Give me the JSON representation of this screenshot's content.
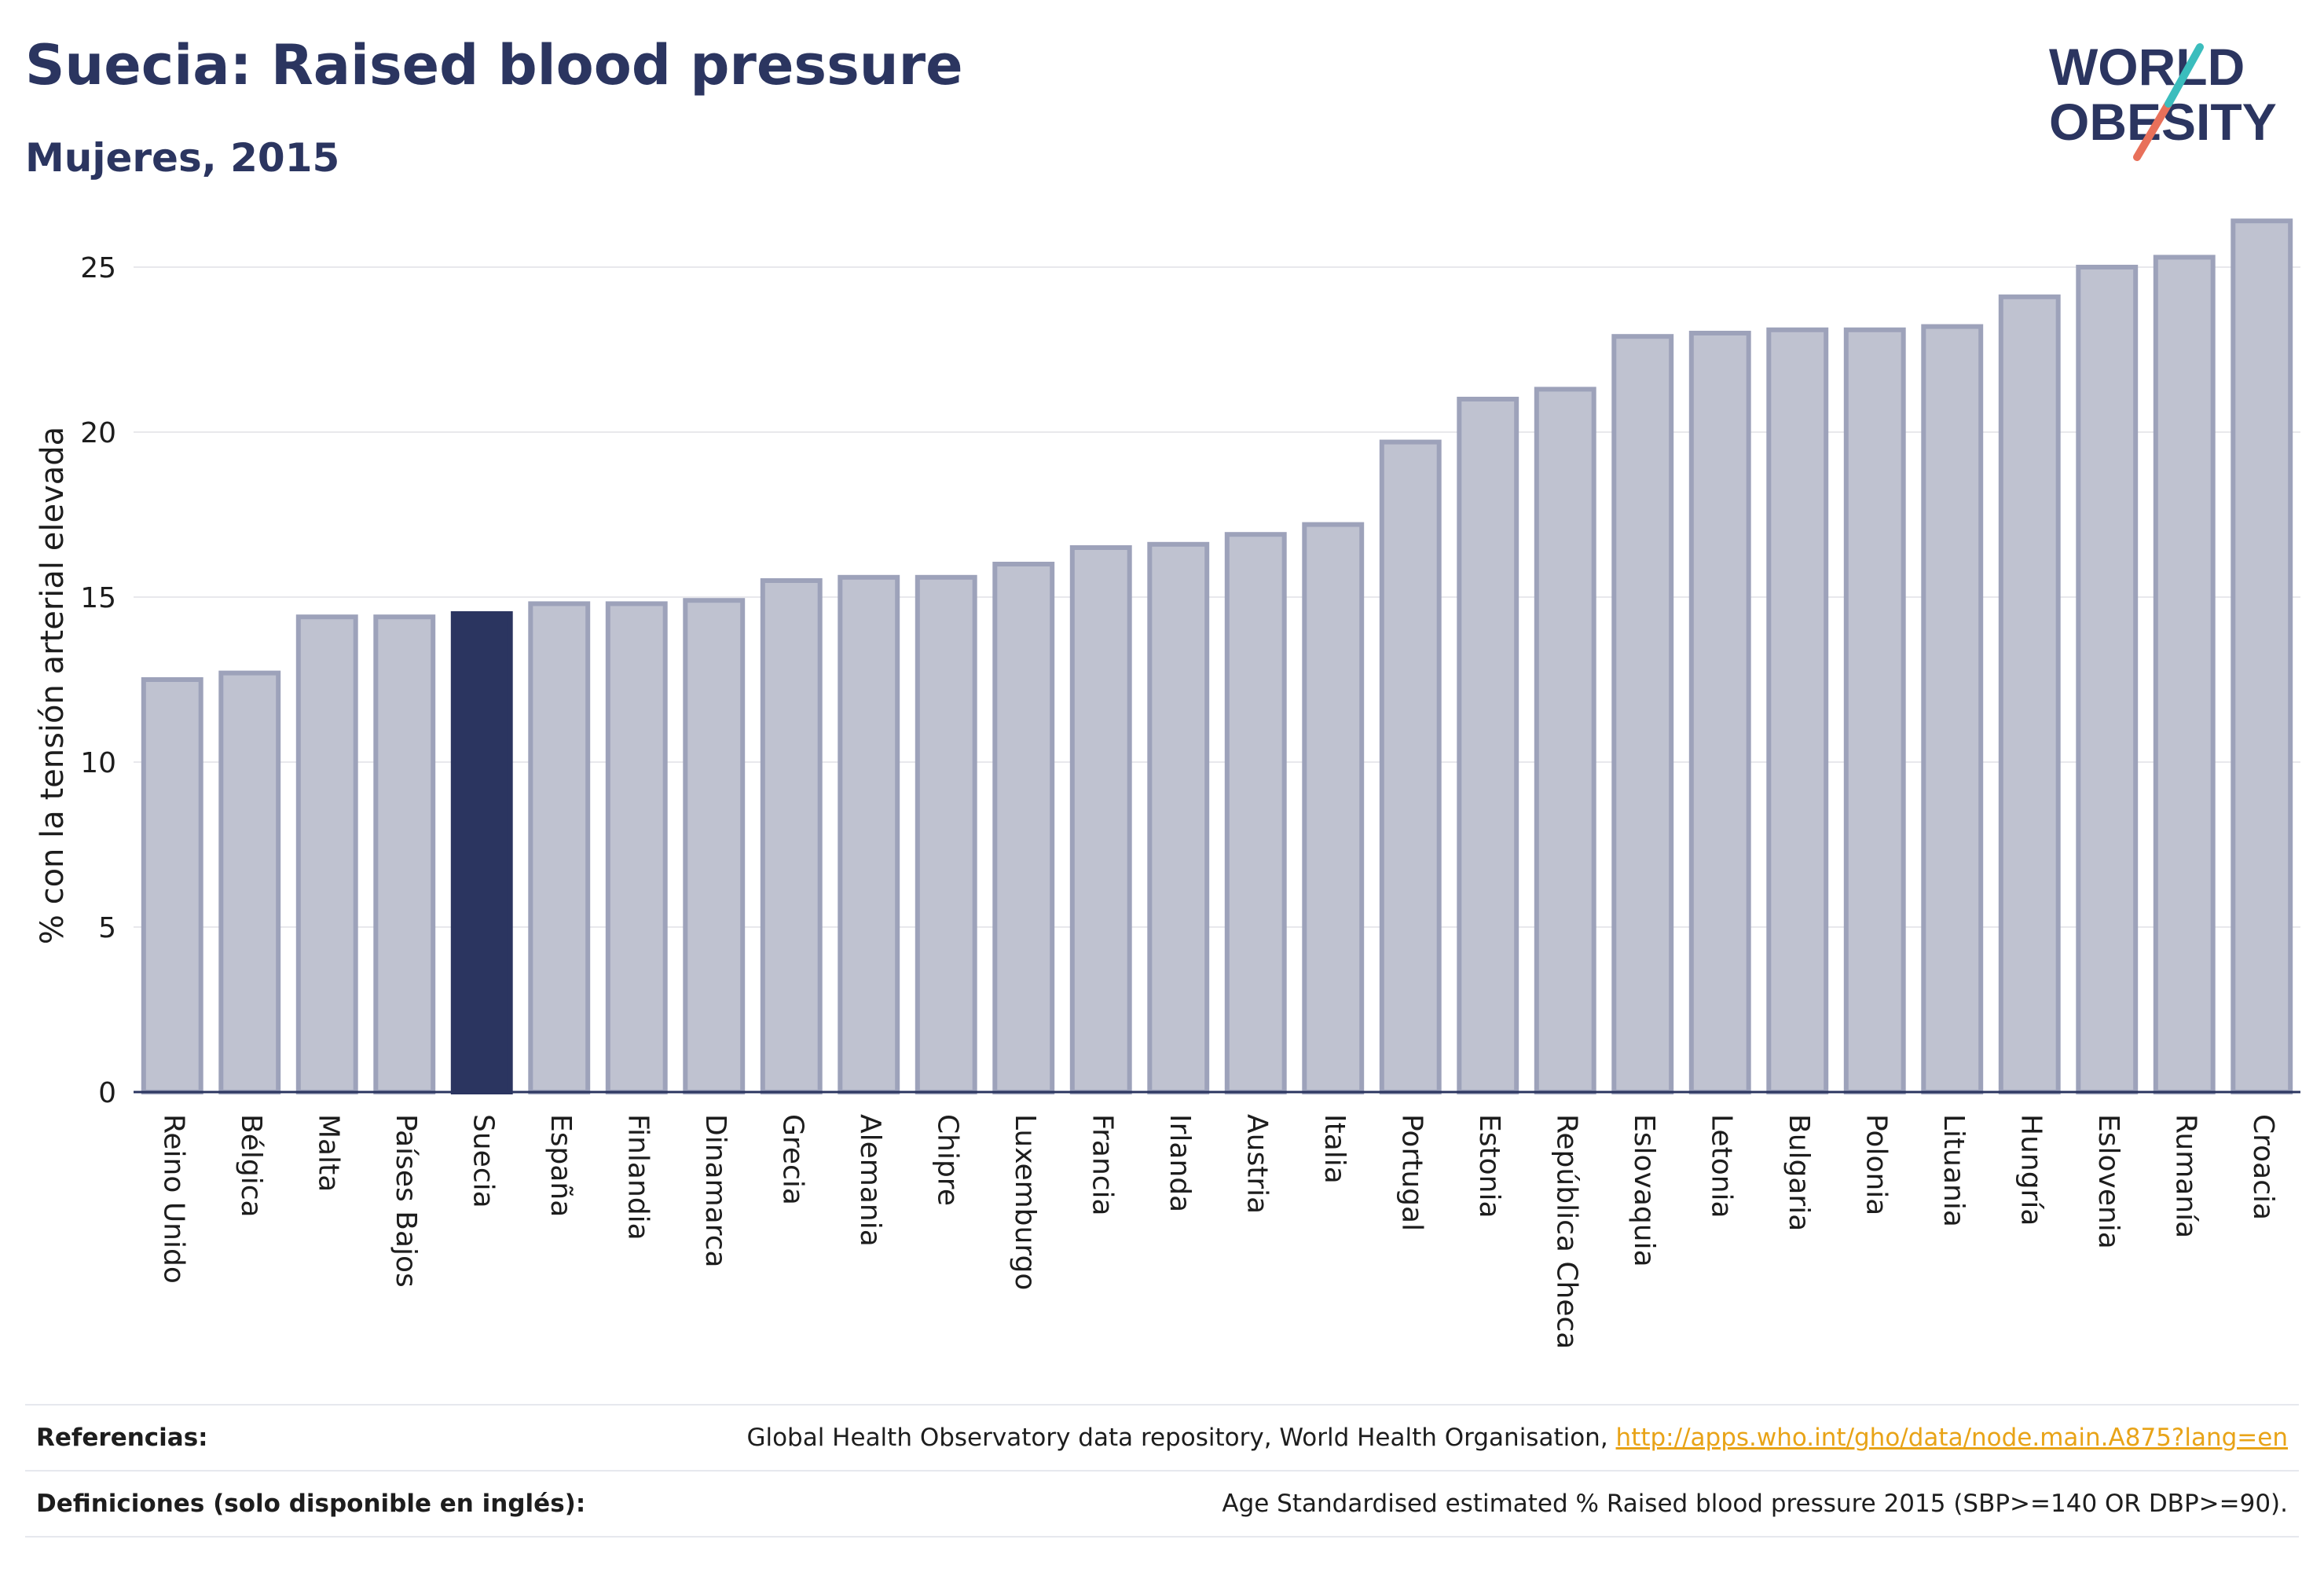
{
  "title": "Suecia: Raised blood pressure",
  "subtitle": "Mujeres, 2015",
  "logo": {
    "line1": "WORLD",
    "line2": "OBESITY"
  },
  "colors": {
    "bar": "#bfc2d0",
    "bar_edge": "#9da2ba",
    "highlight": "#2b3560",
    "axis": "#2b3560",
    "grid": "#e8e8ec",
    "link": "#e8a317"
  },
  "chart_data": {
    "type": "bar",
    "ylabel": "% con la tensión arterial elevada",
    "xlabel": "",
    "ylim": [
      0,
      27.5
    ],
    "yticks": [
      0,
      5,
      10,
      15,
      20,
      25
    ],
    "grid": true,
    "highlight": "Suecia",
    "categories": [
      "Reino Unido",
      "Bélgica",
      "Malta",
      "Países Bajos",
      "Suecia",
      "España",
      "Finlandia",
      "Dinamarca",
      "Grecia",
      "Alemania",
      "Chipre",
      "Luxemburgo",
      "Francia",
      "Irlanda",
      "Austria",
      "Italia",
      "Portugal",
      "Estonia",
      "República Checa",
      "Eslovaquia",
      "Letonia",
      "Bulgaria",
      "Polonia",
      "Lituania",
      "Hungría",
      "Eslovenia",
      "Rumanía",
      "Croacia"
    ],
    "values": [
      12.5,
      12.7,
      14.4,
      14.4,
      14.5,
      14.8,
      14.8,
      14.9,
      15.5,
      15.6,
      15.6,
      16.0,
      16.5,
      16.6,
      16.9,
      17.2,
      19.7,
      21.0,
      21.3,
      22.9,
      23.0,
      23.1,
      23.1,
      23.2,
      24.1,
      25.0,
      25.3,
      26.4
    ]
  },
  "footer": {
    "references_label": "Referencias:",
    "references_text": "Global Health Observatory data repository, World Health Organisation, ",
    "references_link": "http://apps.who.int/gho/data/node.main.A875?lang=en",
    "definitions_label": "Definiciones (solo disponible en inglés):",
    "definitions_text": "Age Standardised estimated % Raised blood pressure 2015 (SBP>=140 OR DBP>=90)."
  }
}
